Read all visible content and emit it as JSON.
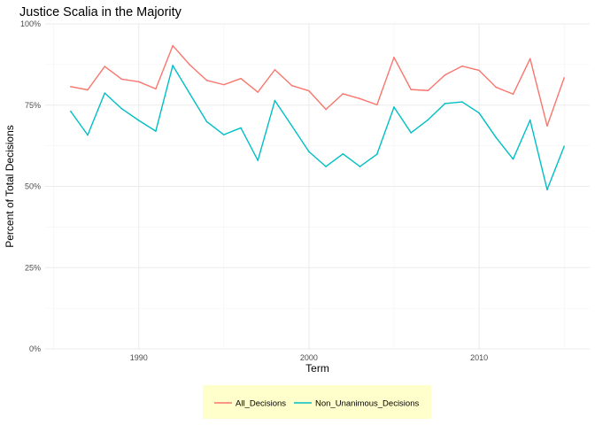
{
  "chart_data": {
    "type": "line",
    "title": "Justice Scalia in the Majority",
    "xlabel": "Term",
    "ylabel": "Percent of Total Decisions",
    "xlim": [
      1984.5,
      2016.5
    ],
    "ylim": [
      0,
      1.0
    ],
    "xticks": [
      1990,
      2000,
      2010
    ],
    "xtick_labels": [
      "1990",
      "2000",
      "2010"
    ],
    "yticks": [
      0,
      0.25,
      0.5,
      0.75,
      1.0
    ],
    "ytick_labels": [
      "0%",
      "25%",
      "50%",
      "75%",
      "100%"
    ],
    "grid": true,
    "legend_position": "bottom",
    "legend_background": "#ffffcc",
    "x": [
      1986,
      1987,
      1988,
      1989,
      1990,
      1991,
      1992,
      1993,
      1994,
      1995,
      1996,
      1997,
      1998,
      1999,
      2000,
      2001,
      2002,
      2003,
      2004,
      2005,
      2006,
      2007,
      2008,
      2009,
      2010,
      2011,
      2012,
      2013,
      2014,
      2015
    ],
    "series": [
      {
        "name": "All_Decisions",
        "color": "#F8766D",
        "values": [
          0.807,
          0.797,
          0.869,
          0.83,
          0.822,
          0.8,
          0.933,
          0.874,
          0.826,
          0.813,
          0.832,
          0.79,
          0.859,
          0.81,
          0.794,
          0.737,
          0.785,
          0.77,
          0.751,
          0.897,
          0.798,
          0.795,
          0.843,
          0.87,
          0.857,
          0.805,
          0.784,
          0.893,
          0.686,
          0.834
        ]
      },
      {
        "name": "Non_Unanimous_Decisions",
        "color": "#00BFC4",
        "values": [
          0.731,
          0.658,
          0.787,
          0.739,
          0.703,
          0.67,
          0.872,
          0.785,
          0.699,
          0.659,
          0.68,
          0.58,
          0.764,
          0.686,
          0.607,
          0.561,
          0.6,
          0.561,
          0.599,
          0.744,
          0.665,
          0.705,
          0.755,
          0.76,
          0.726,
          0.65,
          0.584,
          0.704,
          0.49,
          0.623
        ]
      }
    ]
  }
}
